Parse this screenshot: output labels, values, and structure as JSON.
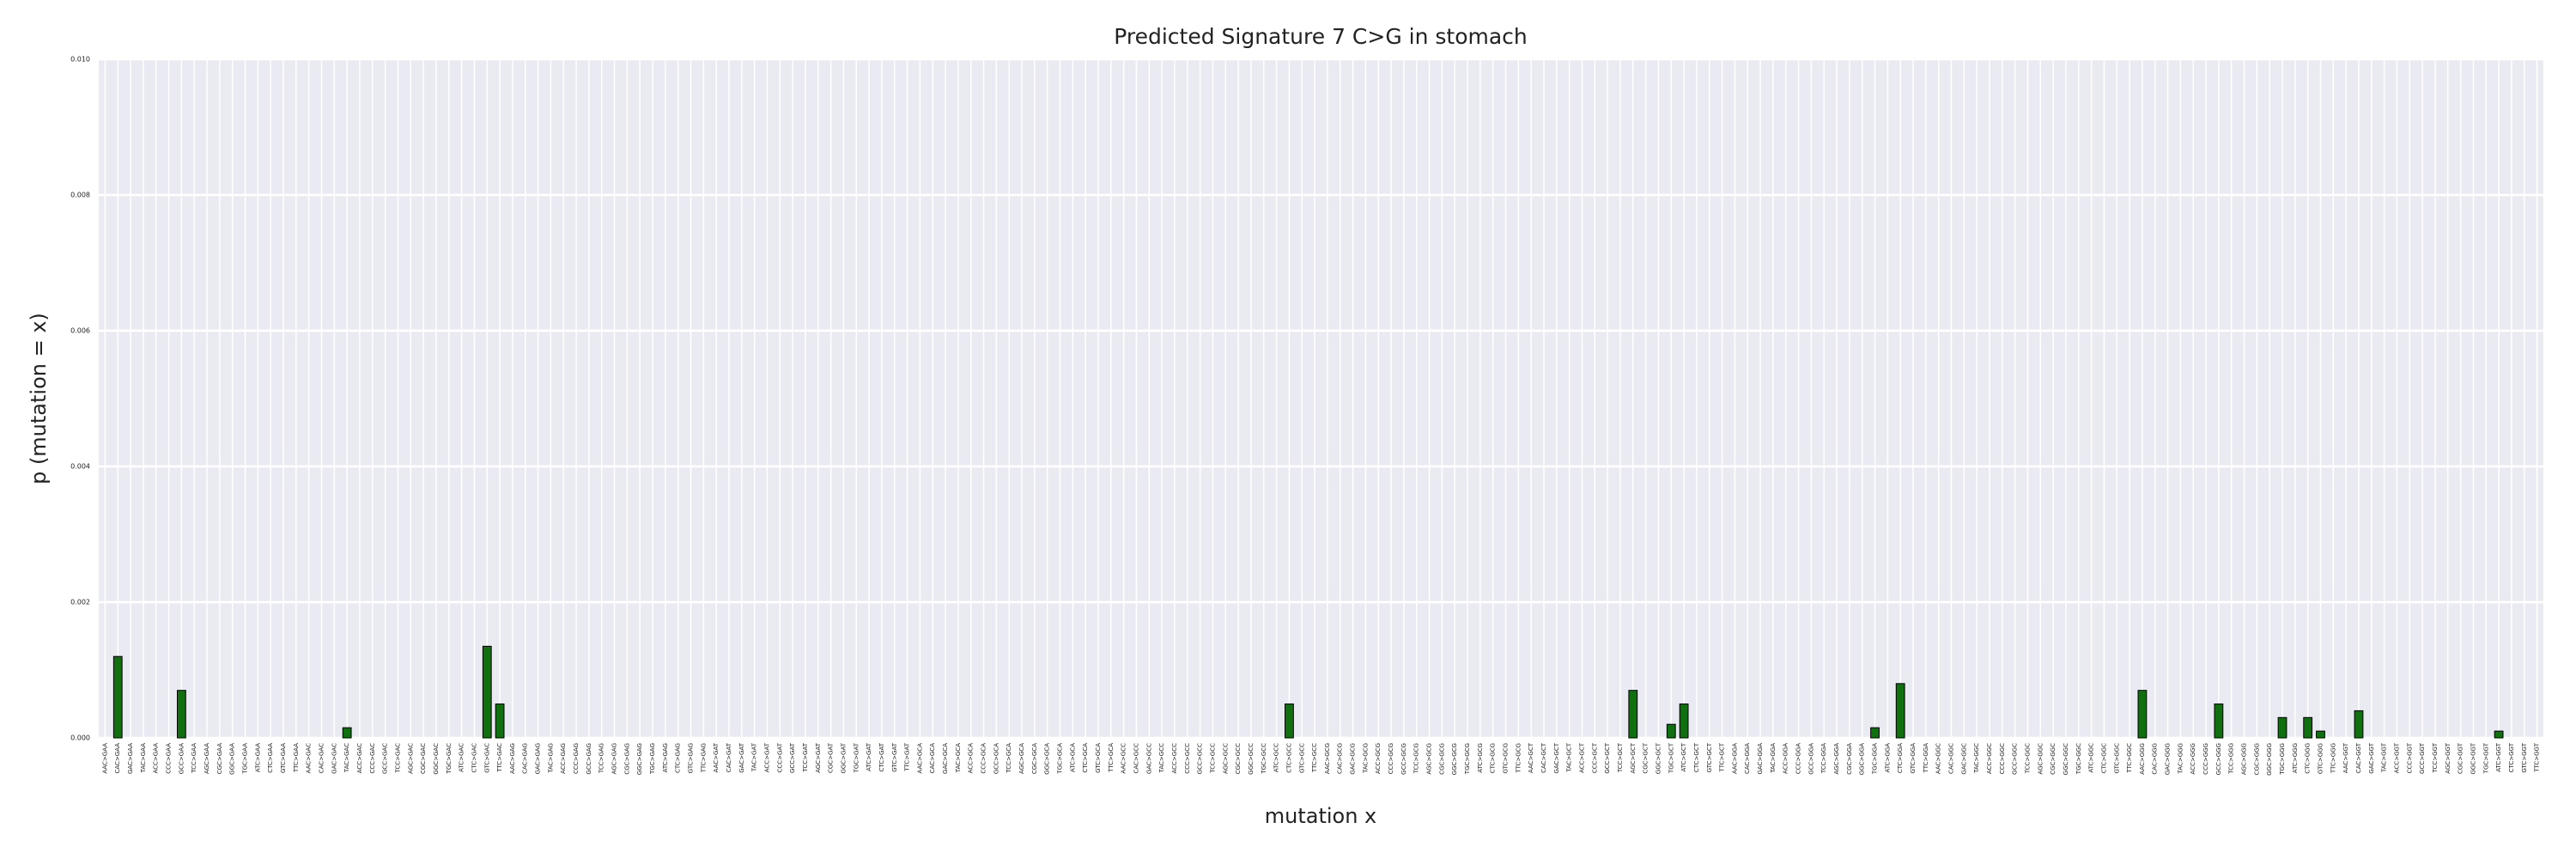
{
  "chart_data": {
    "type": "bar",
    "title": "Predicted Signature 7 C>G in stomach",
    "x_label": "mutation x",
    "y_label": "p (mutation = x)",
    "color": "#107010",
    "edgecolor": "#000000",
    "grid": true,
    "ylim": [
      0,
      0.01
    ],
    "yticks": [
      {
        "value": 0,
        "label": "0.000"
      },
      {
        "value": 0.002,
        "label": "0.002"
      },
      {
        "value": 0.004,
        "label": "0.004"
      },
      {
        "value": 0.006,
        "label": "0.006"
      },
      {
        "value": 0.008,
        "label": "0.008"
      },
      {
        "value": 0.01,
        "label": "0.010"
      }
    ],
    "categories": [
      "AAC>GAA",
      "CAC>GAA",
      "GAC>GAA",
      "TAC>GAA",
      "ACC>GAA",
      "CCC>GAA",
      "GCC>GAA",
      "TCC>GAA",
      "AGC>GAA",
      "CGC>GAA",
      "GGC>GAA",
      "TGC>GAA",
      "ATC>GAA",
      "CTC>GAA",
      "GTC>GAA",
      "TTC>GAA",
      "AAC>GAC",
      "CAC>GAC",
      "GAC>GAC",
      "TAC>GAC",
      "ACC>GAC",
      "CCC>GAC",
      "GCC>GAC",
      "TCC>GAC",
      "AGC>GAC",
      "CGC>GAC",
      "GGC>GAC",
      "TGC>GAC",
      "ATC>GAC",
      "CTC>GAC",
      "GTC>GAC",
      "TTC>GAC",
      "AAC>GAG",
      "CAC>GAG",
      "GAC>GAG",
      "TAC>GAG",
      "ACC>GAG",
      "CCC>GAG",
      "GCC>GAG",
      "TCC>GAG",
      "AGC>GAG",
      "CGC>GAG",
      "GGC>GAG",
      "TGC>GAG",
      "ATC>GAG",
      "CTC>GAG",
      "GTC>GAG",
      "TTC>GAG",
      "AAC>GAT",
      "CAC>GAT",
      "GAC>GAT",
      "TAC>GAT",
      "ACC>GAT",
      "CCC>GAT",
      "GCC>GAT",
      "TCC>GAT",
      "AGC>GAT",
      "CGC>GAT",
      "GGC>GAT",
      "TGC>GAT",
      "ATC>GAT",
      "CTC>GAT",
      "GTC>GAT",
      "TTC>GAT",
      "AAC>GCA",
      "CAC>GCA",
      "GAC>GCA",
      "TAC>GCA",
      "ACC>GCA",
      "CCC>GCA",
      "GCC>GCA",
      "TCC>GCA",
      "AGC>GCA",
      "CGC>GCA",
      "GGC>GCA",
      "TGC>GCA",
      "ATC>GCA",
      "CTC>GCA",
      "GTC>GCA",
      "TTC>GCA",
      "AAC>GCC",
      "CAC>GCC",
      "GAC>GCC",
      "TAC>GCC",
      "ACC>GCC",
      "CCC>GCC",
      "GCC>GCC",
      "TCC>GCC",
      "AGC>GCC",
      "CGC>GCC",
      "GGC>GCC",
      "TGC>GCC",
      "ATC>GCC",
      "CTC>GCC",
      "GTC>GCC",
      "TTC>GCC",
      "AAC>GCG",
      "CAC>GCG",
      "GAC>GCG",
      "TAC>GCG",
      "ACC>GCG",
      "CCC>GCG",
      "GCC>GCG",
      "TCC>GCG",
      "AGC>GCG",
      "CGC>GCG",
      "GGC>GCG",
      "TGC>GCG",
      "ATC>GCG",
      "CTC>GCG",
      "GTC>GCG",
      "TTC>GCG",
      "AAC>GCT",
      "CAC>GCT",
      "GAC>GCT",
      "TAC>GCT",
      "ACC>GCT",
      "CCC>GCT",
      "GCC>GCT",
      "TCC>GCT",
      "AGC>GCT",
      "CGC>GCT",
      "GGC>GCT",
      "TGC>GCT",
      "ATC>GCT",
      "CTC>GCT",
      "GTC>GCT",
      "TTC>GCT",
      "AAC>GGA",
      "CAC>GGA",
      "GAC>GGA",
      "TAC>GGA",
      "ACC>GGA",
      "CCC>GGA",
      "GCC>GGA",
      "TCC>GGA",
      "AGC>GGA",
      "CGC>GGA",
      "GGC>GGA",
      "TGC>GGA",
      "ATC>GGA",
      "CTC>GGA",
      "GTC>GGA",
      "TTC>GGA",
      "AAC>GGC",
      "CAC>GGC",
      "GAC>GGC",
      "TAC>GGC",
      "ACC>GGC",
      "CCC>GGC",
      "GCC>GGC",
      "TCC>GGC",
      "AGC>GGC",
      "CGC>GGC",
      "GGC>GGC",
      "TGC>GGC",
      "ATC>GGC",
      "CTC>GGC",
      "GTC>GGC",
      "TTC>GGC",
      "AAC>GGG",
      "CAC>GGG",
      "GAC>GGG",
      "TAC>GGG",
      "ACC>GGG",
      "CCC>GGG",
      "GCC>GGG",
      "TCC>GGG",
      "AGC>GGG",
      "CGC>GGG",
      "GGC>GGG",
      "TGC>GGG",
      "ATC>GGG",
      "CTC>GGG",
      "GTC>GGG",
      "TTC>GGG",
      "AAC>GGT",
      "CAC>GGT",
      "GAC>GGT",
      "TAC>GGT",
      "ACC>GGT",
      "CCC>GGT",
      "GCC>GGT",
      "TCC>GGT",
      "AGC>GGT",
      "CGC>GGT",
      "GGC>GGT",
      "TGC>GGT",
      "ATC>GGT",
      "CTC>GGT",
      "GTC>GGT",
      "TTC>GGT"
    ],
    "values": [
      0,
      0.0012,
      0,
      0,
      0,
      0,
      0.0007,
      0,
      0,
      0,
      0,
      0,
      0,
      0,
      0,
      0,
      0,
      0,
      0,
      0.00015,
      0,
      0,
      0,
      0,
      0,
      0,
      0,
      0,
      0,
      0,
      0.00135,
      0.0005,
      0,
      0,
      0,
      0,
      0,
      0,
      0,
      0,
      0,
      0,
      0,
      0,
      0,
      0,
      0,
      0,
      0,
      0,
      0,
      0,
      0,
      0,
      0,
      0,
      0,
      0,
      0,
      0,
      0,
      0,
      0,
      0,
      0,
      0,
      0,
      0,
      0,
      0,
      0,
      0,
      0,
      0,
      0,
      0,
      0,
      0,
      0,
      0,
      0,
      0,
      0,
      0,
      0,
      0,
      0,
      0,
      0,
      0,
      0,
      0,
      0,
      0.0005,
      0,
      0,
      0,
      0,
      0,
      0,
      0,
      0,
      0,
      0,
      0,
      0,
      0,
      0,
      0,
      0,
      0,
      0,
      0,
      0,
      0,
      0,
      0,
      0,
      0,
      0,
      0.0007,
      0,
      0,
      0.0002,
      0.0005,
      0,
      0,
      0,
      0,
      0,
      0,
      0,
      0,
      0,
      0,
      0,
      0,
      0,
      0,
      0.00015,
      0,
      0.0008,
      0,
      0,
      0,
      0,
      0,
      0,
      0,
      0,
      0,
      0,
      0,
      0,
      0,
      0,
      0,
      0,
      0,
      0,
      0.0007,
      0,
      0,
      0,
      0,
      0,
      0.0005,
      0,
      0,
      0,
      0,
      0.0003,
      0,
      0.0003,
      0.0001,
      0,
      0,
      0.0004,
      0,
      0,
      0,
      0,
      0,
      0,
      0,
      0,
      0,
      0,
      0.0001,
      0,
      0,
      0
    ]
  }
}
